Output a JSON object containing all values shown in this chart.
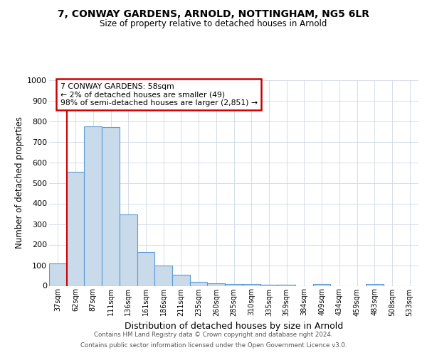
{
  "title1": "7, CONWAY GARDENS, ARNOLD, NOTTINGHAM, NG5 6LR",
  "title2": "Size of property relative to detached houses in Arnold",
  "xlabel": "Distribution of detached houses by size in Arnold",
  "ylabel": "Number of detached properties",
  "categories": [
    "37sqm",
    "62sqm",
    "87sqm",
    "111sqm",
    "136sqm",
    "161sqm",
    "186sqm",
    "211sqm",
    "235sqm",
    "260sqm",
    "285sqm",
    "310sqm",
    "335sqm",
    "359sqm",
    "384sqm",
    "409sqm",
    "434sqm",
    "459sqm",
    "483sqm",
    "508sqm",
    "533sqm"
  ],
  "values": [
    110,
    555,
    775,
    770,
    345,
    163,
    97,
    53,
    18,
    13,
    10,
    8,
    5,
    5,
    0,
    8,
    0,
    0,
    10,
    0,
    0
  ],
  "bar_color": "#c9daea",
  "bar_edge_color": "#5b9bd5",
  "property_line_color": "#cc0000",
  "annotation_text": "7 CONWAY GARDENS: 58sqm\n← 2% of detached houses are smaller (49)\n98% of semi-detached houses are larger (2,851) →",
  "annotation_box_color": "#ffffff",
  "annotation_box_edge_color": "#cc0000",
  "ylim": [
    0,
    1000
  ],
  "yticks": [
    0,
    100,
    200,
    300,
    400,
    500,
    600,
    700,
    800,
    900,
    1000
  ],
  "footer1": "Contains HM Land Registry data © Crown copyright and database right 2024.",
  "footer2": "Contains public sector information licensed under the Open Government Licence v3.0.",
  "bg_color": "#ffffff",
  "grid_color": "#cdd8e8"
}
